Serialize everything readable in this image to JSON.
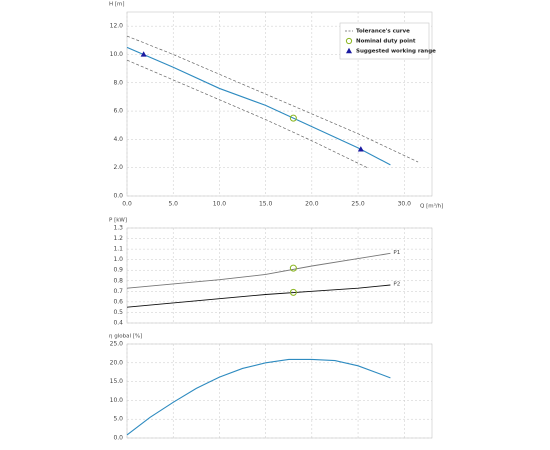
{
  "chart_data": [
    {
      "type": "line",
      "ylabel": "H [m]",
      "xlabel": "Q [m³/h]",
      "xlim": [
        0,
        33
      ],
      "ylim": [
        0,
        13
      ],
      "xticks": [
        {
          "value": 0,
          "label": "0.0"
        },
        {
          "value": 5,
          "label": "5.0"
        },
        {
          "value": 10,
          "label": "10.0"
        },
        {
          "value": 15,
          "label": "15.0"
        },
        {
          "value": 20,
          "label": "20.0"
        },
        {
          "value": 25,
          "label": "25.0"
        },
        {
          "value": 30,
          "label": "30.0"
        }
      ],
      "yticks": [
        {
          "value": 0,
          "label": "0.0"
        },
        {
          "value": 2,
          "label": "2.0"
        },
        {
          "value": 4,
          "label": "4.0"
        },
        {
          "value": 6,
          "label": "6.0"
        },
        {
          "value": 8,
          "label": "8.0"
        },
        {
          "value": 10,
          "label": "10.0"
        },
        {
          "value": 12,
          "label": "12.0"
        }
      ],
      "grid": true,
      "curve": {
        "color": "#2e8bc0",
        "x": [
          0,
          5,
          10,
          15,
          18,
          20,
          25,
          28.5
        ],
        "values": [
          10.5,
          9.1,
          7.6,
          6.4,
          5.5,
          4.9,
          3.4,
          2.2
        ]
      },
      "tolerance": {
        "name": "Tolerance's curve",
        "color": "#666666",
        "upper": {
          "x": [
            0,
            5,
            10,
            15,
            20,
            25,
            31.5
          ],
          "values": [
            11.3,
            10.0,
            8.6,
            7.2,
            5.8,
            4.4,
            2.4
          ]
        },
        "lower": {
          "x": [
            0,
            5,
            10,
            15,
            20,
            26
          ],
          "values": [
            9.6,
            8.2,
            6.8,
            5.4,
            3.9,
            2.0
          ]
        }
      },
      "duty_point": {
        "name": "Nominal duty point",
        "color": "#8ab520",
        "x": 18,
        "value": 5.5
      },
      "working_range": {
        "name": "Suggested working range",
        "color": "#1a1aa0",
        "x": [
          1.8,
          25.3
        ],
        "values": [
          10.0,
          3.3
        ]
      }
    },
    {
      "type": "line",
      "ylabel": "P [kW]",
      "xlim": [
        0,
        33
      ],
      "ylim": [
        0.4,
        1.3
      ],
      "xticks": [
        0,
        5,
        10,
        15,
        20,
        25,
        30
      ],
      "yticks": [
        0.4,
        0.5,
        0.6,
        0.7,
        0.8,
        0.9,
        {
          "value": 1.0,
          "label": "1.0"
        },
        1.1,
        1.2,
        1.3
      ],
      "grid": true,
      "x": [
        0,
        5,
        10,
        15,
        20,
        25,
        28.5
      ],
      "duty_x": 18,
      "duty_color": "#8ab520",
      "series": [
        {
          "name": "P1",
          "color": "#777777",
          "values": [
            0.73,
            0.77,
            0.81,
            0.86,
            0.94,
            1.01,
            1.06
          ],
          "duty_value": 0.92
        },
        {
          "name": "P2",
          "color": "#111111",
          "values": [
            0.55,
            0.59,
            0.63,
            0.67,
            0.7,
            0.73,
            0.76
          ],
          "duty_value": 0.69
        }
      ]
    },
    {
      "type": "line",
      "ylabel": "η global [%]",
      "xlim": [
        0,
        33
      ],
      "ylim": [
        0,
        25
      ],
      "xticks": [
        0,
        5,
        10,
        15,
        20,
        25,
        30
      ],
      "yticks": [
        {
          "value": 0,
          "label": "0.0"
        },
        {
          "value": 5,
          "label": "5.0"
        },
        {
          "value": 10,
          "label": "10.0"
        },
        {
          "value": 15,
          "label": "15.0"
        },
        {
          "value": 20,
          "label": "20.0"
        },
        {
          "value": 25,
          "label": "25.0"
        }
      ],
      "grid": true,
      "curve": {
        "color": "#2e8bc0",
        "x": [
          0,
          2.5,
          5,
          7.5,
          10,
          12.5,
          15,
          17.5,
          20,
          22.5,
          25,
          28.5
        ],
        "values": [
          0.8,
          5.5,
          9.5,
          13.2,
          16.2,
          18.5,
          20,
          20.9,
          20.9,
          20.6,
          19.2,
          16
        ]
      }
    }
  ]
}
